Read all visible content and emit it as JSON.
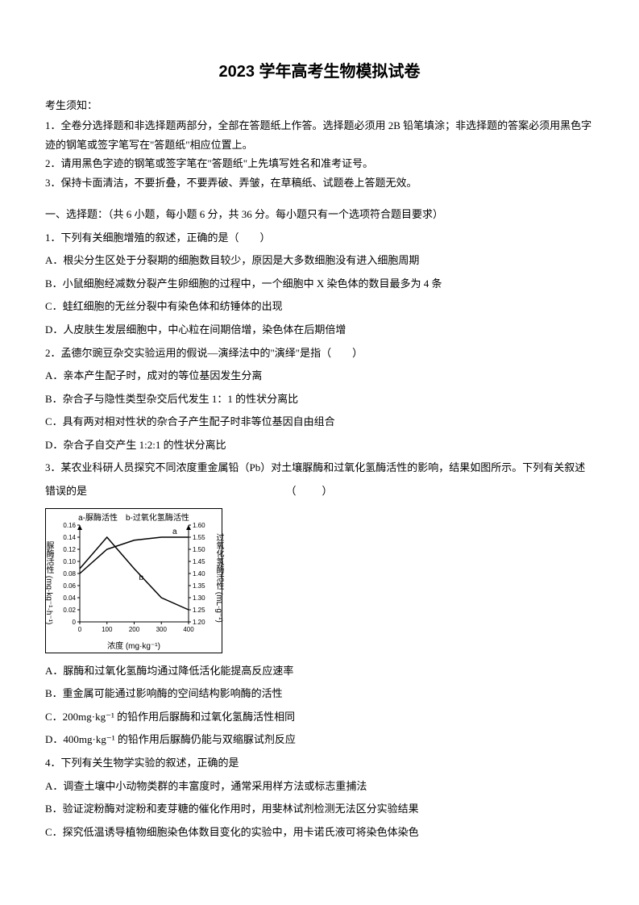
{
  "title": "2023 学年高考生物模拟试卷",
  "instructions": {
    "header": "考生须知：",
    "lines": [
      "1．全卷分选择题和非选择题两部分，全部在答题纸上作答。选择题必须用 2B 铅笔填涂；非选择题的答案必须用黑色字迹的钢笔或签字笔写在\"答题纸\"相应位置上。",
      "2．请用黑色字迹的钢笔或签字笔在\"答题纸\"上先填写姓名和准考证号。",
      "3．保持卡面清洁，不要折叠，不要弄破、弄皱，在草稿纸、试题卷上答题无效。"
    ]
  },
  "section1": {
    "header": "一、选择题：（共 6 小题，每小题 6 分，共 36 分。每小题只有一个选项符合题目要求）"
  },
  "q1": {
    "text": "1．下列有关细胞增殖的叙述，正确的是（　　）",
    "A": "A．根尖分生区处于分裂期的细胞数目较少，原因是大多数细胞没有进入细胞周期",
    "B": "B．小鼠细胞经减数分裂产生卵细胞的过程中，一个细胞中 X 染色体的数目最多为 4 条",
    "C": "C．蛙红细胞的无丝分裂中有染色体和纺锤体的出现",
    "D": "D．人皮肤生发层细胞中，中心粒在间期倍增，染色体在后期倍增"
  },
  "q2": {
    "text": "2．孟德尔豌豆杂交实验运用的假说—演绎法中的\"演绎\"是指（　　）",
    "A": "A．亲本产生配子时，成对的等位基因发生分离",
    "B": "B．杂合子与隐性类型杂交后代发生 1：1 的性状分离比",
    "C": "C．具有两对相对性状的杂合子产生配子时非等位基因自由组合",
    "D": "D．杂合子自交产生 1:2:1 的性状分离比"
  },
  "q3": {
    "text_pre": "3．某农业科研人员探究不同浓度重金属铅（Pb）对土壤脲酶和过氧化氢酶活性的影响，结果如图所示。下列有关叙述错误的是",
    "text_post": "（　　）",
    "A": "A．脲酶和过氧化氢酶均通过降低活化能提高反应速率",
    "B": "B．重金属可能通过影响酶的空间结构影响酶的活性",
    "C": "C．200mg·kg⁻¹ 的铅作用后脲酶和过氧化氢酶活性相同",
    "D": "D．400mg·kg⁻¹ 的铅作用后脲酶仍能与双缩脲试剂反应"
  },
  "q4": {
    "text": "4．下列有关生物学实验的叙述，正确的是",
    "A": "A．调查土壤中小动物类群的丰富度时，通常采用样方法或标志重捕法",
    "B": "B．验证淀粉酶对淀粉和麦芽糖的催化作用时，用斐林试剂检测无法区分实验结果",
    "C": "C．探究低温诱导植物细胞染色体数目变化的实验中，用卡诺氏液可将染色体染色"
  },
  "chart": {
    "legend": "a-脲酶活性　b-过氧化氢酶活性",
    "xlabel": "浓度 (mg·kg⁻¹)",
    "y1label": "脲酶活性 (mg·kg⁻¹·h⁻¹)",
    "y2label": "过氧化氢酶活性 (mL·g⁻¹)",
    "x_ticks": [
      "0",
      "100",
      "200",
      "300",
      "400"
    ],
    "y1_ticks": [
      "0",
      "0.02",
      "0.04",
      "0.06",
      "0.08",
      "0.10",
      "0.12",
      "0.14",
      "0.16"
    ],
    "y2_ticks": [
      "1.20",
      "1.25",
      "1.30",
      "1.35",
      "1.40",
      "1.45",
      "1.50",
      "1.55",
      "1.60"
    ],
    "curve_a": {
      "label": "a",
      "x": [
        0,
        100,
        200,
        300,
        400
      ],
      "y": [
        0.08,
        0.12,
        0.135,
        0.14,
        0.14
      ],
      "color": "#000000"
    },
    "curve_b": {
      "label": "b",
      "x": [
        0,
        100,
        200,
        300,
        400
      ],
      "y2": [
        1.42,
        1.55,
        1.42,
        1.3,
        1.25
      ],
      "color": "#000000"
    },
    "plot": {
      "inner_x": 42,
      "inner_y": 4,
      "inner_w": 135,
      "inner_h": 120,
      "x_min": 0,
      "x_max": 400,
      "y1_min": 0,
      "y1_max": 0.16,
      "y2_min": 1.2,
      "y2_max": 1.6
    }
  }
}
